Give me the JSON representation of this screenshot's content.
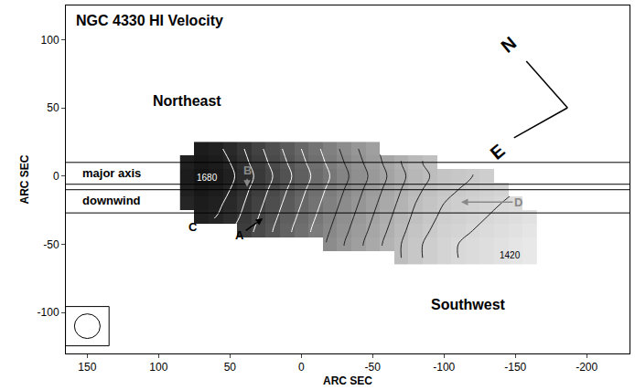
{
  "chart_data": {
    "type": "heatmap",
    "title": "NGC 4330 HI Velocity",
    "xlabel": "ARC SEC",
    "ylabel": "ARC SEC",
    "xlim": [
      165,
      -230
    ],
    "ylim": [
      -130,
      125
    ],
    "xticks": [
      150,
      100,
      50,
      0,
      -50,
      -100,
      -150,
      -200
    ],
    "yticks": [
      100,
      50,
      0,
      -50,
      -100
    ],
    "grid": false,
    "x": [
      -160,
      -150,
      -140,
      -130,
      -120,
      -110,
      -100,
      -90,
      -80,
      -70,
      -60,
      -50,
      -40,
      -30,
      -20,
      -10,
      0,
      10,
      20,
      30,
      40,
      50,
      60,
      70,
      80
    ],
    "y": [
      -60,
      -50,
      -40,
      -30,
      -20,
      -10,
      0,
      10,
      20
    ],
    "cells": [
      [
        1395,
        1400,
        1405,
        1410,
        1415,
        1420,
        1425,
        1435,
        1445,
        1460,
        null,
        null,
        null,
        null,
        null,
        null,
        null,
        null,
        null,
        null,
        null,
        null,
        null,
        null,
        null
      ],
      [
        1395,
        1400,
        1405,
        1410,
        1415,
        1420,
        1425,
        1435,
        1445,
        1460,
        1475,
        1490,
        1505,
        1520,
        1535,
        null,
        null,
        null,
        null,
        null,
        null,
        null,
        null,
        null,
        null
      ],
      [
        1400,
        1405,
        1410,
        1415,
        1420,
        1425,
        1430,
        1440,
        1450,
        1465,
        1480,
        1495,
        1510,
        1525,
        1540,
        1555,
        1570,
        1585,
        1600,
        1615,
        1630,
        null,
        null,
        null,
        null
      ],
      [
        1405,
        1410,
        1415,
        1420,
        1425,
        1430,
        1435,
        1445,
        1455,
        1470,
        1485,
        1500,
        1515,
        1530,
        1545,
        1560,
        1575,
        1590,
        1605,
        1620,
        1635,
        1650,
        1660,
        1665,
        null
      ],
      [
        null,
        1415,
        1420,
        1425,
        1430,
        1435,
        1440,
        1450,
        1460,
        1475,
        1490,
        1505,
        1520,
        1535,
        1550,
        1565,
        1580,
        1595,
        1610,
        1625,
        1640,
        1655,
        1665,
        1670,
        1660
      ],
      [
        null,
        null,
        1425,
        1430,
        1435,
        1440,
        1445,
        1455,
        1465,
        1480,
        1495,
        1510,
        1525,
        1540,
        1555,
        1570,
        1585,
        1600,
        1615,
        1630,
        1645,
        1660,
        1670,
        1675,
        1665
      ],
      [
        null,
        null,
        null,
        1435,
        1440,
        1445,
        1450,
        1460,
        1470,
        1485,
        1500,
        1515,
        1530,
        1545,
        1560,
        1575,
        1590,
        1605,
        1620,
        1635,
        1650,
        1665,
        1675,
        1680,
        1670
      ],
      [
        null,
        null,
        null,
        null,
        null,
        null,
        null,
        1455,
        1465,
        1480,
        1495,
        1510,
        1525,
        1540,
        1555,
        1570,
        1585,
        1600,
        1615,
        1630,
        1645,
        1660,
        1670,
        1675,
        1665
      ],
      [
        null,
        null,
        null,
        null,
        null,
        null,
        null,
        null,
        null,
        null,
        null,
        1505,
        1520,
        1535,
        1550,
        1565,
        1580,
        1595,
        1610,
        1625,
        1640,
        1655,
        1665,
        1670,
        null
      ]
    ],
    "contours": {
      "start": 1420,
      "end": 1680,
      "step": 20
    },
    "contour_labels": [
      {
        "text": "1680",
        "value": 1680,
        "x": 66,
        "y": -1
      },
      {
        "text": "1420",
        "value": 1420,
        "x": -146,
        "y": -58
      }
    ],
    "hlines": [
      10,
      -6,
      -10,
      -27
    ],
    "band_labels": [
      {
        "text": "major axis",
        "x": 155,
        "y": 2
      },
      {
        "text": "downwind",
        "x": 155,
        "y": -18
      }
    ],
    "region_labels": [
      {
        "text": "Northeast",
        "x": 80,
        "y": 55
      },
      {
        "text": "Southwest",
        "x": -117,
        "y": -94
      }
    ],
    "feature_labels": [
      {
        "text": "A",
        "x": 43,
        "y": -43,
        "color": "#000000",
        "arrow_to": [
          27,
          -31
        ]
      },
      {
        "text": "B",
        "x": 38,
        "y": 4,
        "color": "#888888",
        "arrow_to": [
          38,
          -8
        ]
      },
      {
        "text": "C",
        "x": 76,
        "y": -37,
        "color": "#000000"
      },
      {
        "text": "D",
        "x": -152,
        "y": -19,
        "color": "#888888",
        "arrow_to": [
          -112,
          -19
        ]
      }
    ],
    "compass": {
      "north": "N",
      "east": "E"
    },
    "beam": {
      "x": 150,
      "y": -110,
      "diameter": 18
    }
  }
}
